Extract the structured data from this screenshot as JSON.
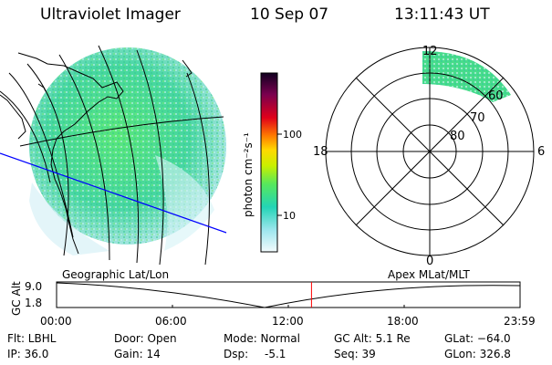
{
  "header": {
    "instrument": "Ultraviolet Imager",
    "date": "10 Sep 07",
    "time": "13:11:43 UT"
  },
  "colorbar": {
    "label": "photon cm⁻²s⁻¹",
    "ticks": [
      "100",
      "10"
    ]
  },
  "polar_plot": {
    "mlt_labels": [
      "12",
      "18",
      "6",
      "0"
    ],
    "lat_labels": [
      "60",
      "70",
      "80"
    ]
  },
  "altitude_plot": {
    "left_title": "Geographic Lat/Lon",
    "right_title": "Apex MLat/MLT",
    "y_label": "GC Alt",
    "y_ticks": [
      "9.0",
      "1.8"
    ],
    "x_ticks": [
      "00:00",
      "06:00",
      "12:00",
      "18:00",
      "23:59"
    ],
    "current_time_marker_hours": 13.2
  },
  "info_rows": {
    "row1": [
      "Flt: LBHL",
      "Door: Open",
      "Mode: Normal",
      "GC Alt: 5.1 Re",
      "GLat: −64.0"
    ],
    "row2": [
      "IP: 36.0",
      "Gain: 14",
      "Dsp:",
      "-5.1",
      "Seq: 39",
      "GLon: 326.8"
    ]
  },
  "colors": {
    "accent_line": "#ff0000",
    "track_line": "#0000ff"
  }
}
